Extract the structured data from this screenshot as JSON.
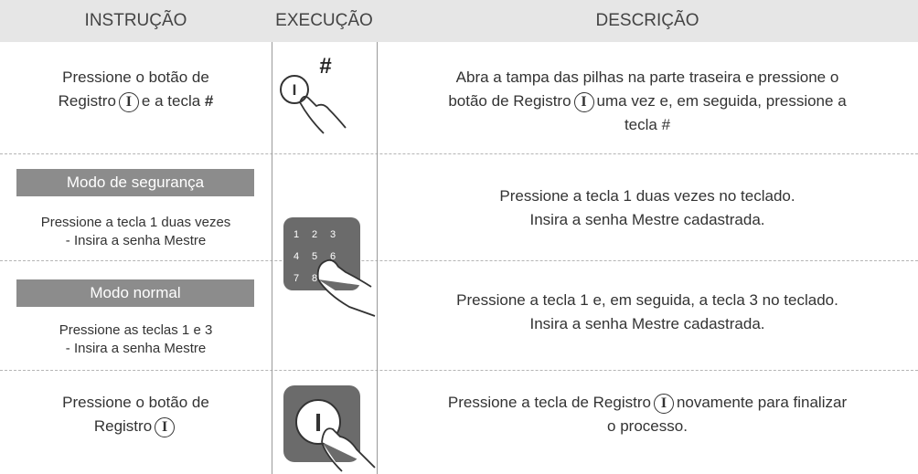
{
  "header": {
    "instruction": "INSTRUÇÃO",
    "execution": "EXECUÇÃO",
    "description": "DESCRIÇÃO"
  },
  "register_symbol": "I",
  "hash_symbol": "#",
  "keypad": [
    "1",
    "2",
    "3",
    "4",
    "5",
    "6",
    "7",
    "8"
  ],
  "rows": [
    {
      "instruction": [
        "Pressione o botão de",
        "Registro",
        "e a tecla",
        "#"
      ],
      "description": [
        "Abra a tampa das pilhas na parte traseira e pressione o",
        "botão de Registro",
        "uma vez e, em seguida, pressione a",
        "tecla #"
      ]
    },
    {
      "mode": "Modo de segurança",
      "instruction": [
        "Pressione a tecla 1 duas vezes",
        "- Insira a senha Mestre"
      ],
      "description": [
        "Pressione a tecla 1 duas vezes no teclado.",
        "Insira a senha Mestre cadastrada."
      ]
    },
    {
      "mode": "Modo normal",
      "instruction": [
        "Pressione as teclas 1 e 3",
        "- Insira a senha Mestre"
      ],
      "description": [
        "Pressione a tecla 1 e, em seguida, a tecla 3 no teclado.",
        "Insira a senha Mestre cadastrada."
      ]
    },
    {
      "instruction": [
        "Pressione o botão de",
        "Registro"
      ],
      "description": [
        "Pressione a tecla de Registro",
        "novamente para finalizar",
        "o processo."
      ]
    }
  ]
}
